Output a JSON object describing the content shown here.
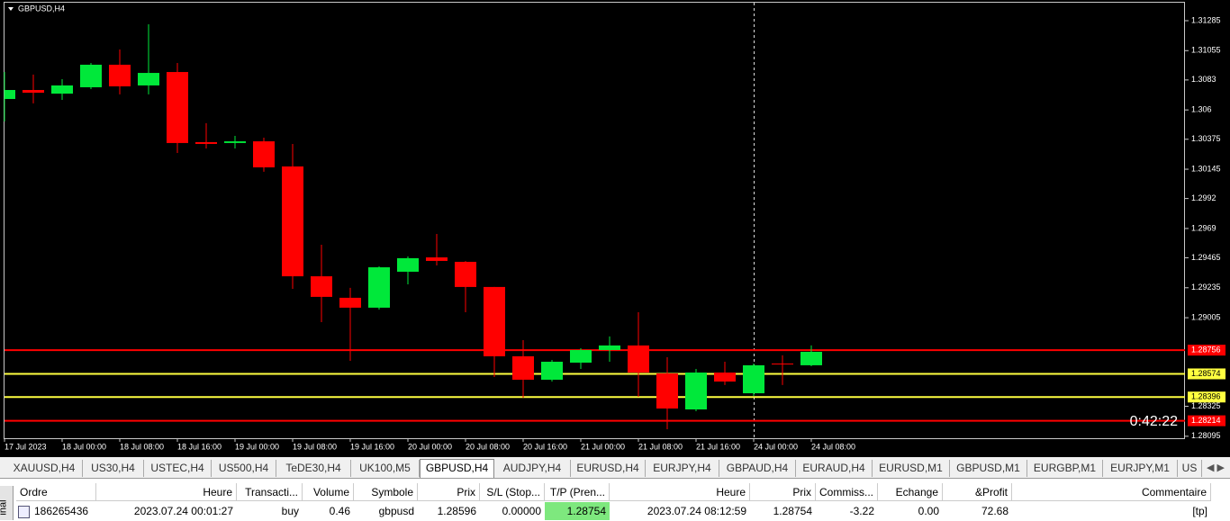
{
  "chart_data": {
    "type": "candlestick",
    "title": "GBPUSD,H4",
    "categories": [
      "17 Jul 2023",
      null,
      "18 Jul 00:00",
      null,
      "18 Jul 08:00",
      null,
      "18 Jul 16:00",
      null,
      "19 Jul 00:00",
      null,
      "19 Jul 08:00",
      null,
      "19 Jul 16:00",
      null,
      "20 Jul 00:00",
      null,
      "20 Jul 08:00",
      null,
      "20 Jul 16:00",
      null,
      "21 Jul 00:00",
      null,
      "21 Jul 08:00",
      null,
      "21 Jul 16:00",
      null,
      "24 Jul 00:00",
      null,
      "24 Jul 08:00"
    ],
    "open": [
      1.30684,
      1.30753,
      1.30725,
      1.30774,
      1.30947,
      1.30788,
      1.30891,
      1.30353,
      1.30346,
      1.30359,
      1.30166,
      1.29323,
      1.29158,
      1.29082,
      1.29358,
      1.29468,
      1.29434,
      1.29241,
      1.28709,
      1.28529,
      1.2866,
      1.28757,
      1.28792,
      1.28577,
      1.28301,
      1.28584,
      1.28425,
      1.28653,
      1.2864
    ],
    "high": [
      1.30891,
      1.30871,
      1.30836,
      1.3096,
      1.31064,
      1.31257,
      1.3096,
      1.30498,
      1.30401,
      1.30387,
      1.30339,
      1.29565,
      1.29234,
      1.29399,
      1.29475,
      1.29648,
      1.2944,
      1.29241,
      1.28833,
      1.28681,
      1.28771,
      1.28861,
      1.29047,
      1.28702,
      1.28612,
      1.28667,
      1.28653,
      1.28716,
      1.28792
    ],
    "low": [
      1.30511,
      1.3065,
      1.30677,
      1.3076,
      1.30719,
      1.30719,
      1.3027,
      1.30304,
      1.30304,
      1.30125,
      1.29227,
      1.28971,
      1.28674,
      1.29068,
      1.29261,
      1.29406,
      1.29047,
      1.2855,
      1.28391,
      1.28515,
      1.28612,
      1.28667,
      1.28398,
      1.28149,
      1.28287,
      1.28488,
      1.28405,
      1.28488,
      1.28633
    ],
    "close": [
      1.30753,
      1.30732,
      1.30788,
      1.30947,
      1.30781,
      1.30884,
      1.30346,
      1.30339,
      1.30359,
      1.30159,
      1.29323,
      1.29165,
      1.29082,
      1.29392,
      1.29462,
      1.29441,
      1.29241,
      1.28709,
      1.28529,
      1.28667,
      1.28757,
      1.28792,
      1.28584,
      1.28308,
      1.28584,
      1.28515,
      1.2864,
      1.28646,
      1.28743
    ],
    "up_color": "#00e83a",
    "down_color": "#ff0000",
    "ylim": [
      1.2808,
      1.3143
    ],
    "yticks": [
      1.31285,
      1.31055,
      1.3083,
      1.306,
      1.30375,
      1.30145,
      1.2992,
      1.2969,
      1.29465,
      1.29235,
      1.29005,
      1.28325,
      1.28095
    ],
    "levels": [
      {
        "value": 1.28756,
        "color": "#ff0000"
      },
      {
        "value": 1.28574,
        "color": "#ffff40"
      },
      {
        "value": 1.28396,
        "color": "#ffff40"
      },
      {
        "value": 1.28214,
        "color": "#ff0000"
      }
    ],
    "countdown": "0:42:22"
  },
  "tabs": [
    "XAUUSD,H4",
    "US30,H4",
    "USTEC,H4",
    "US500,H4",
    "TeDE30,H4",
    "UK100,M5",
    "GBPUSD,H4",
    "AUDJPY,H4",
    "EURUSD,H4",
    "EURJPY,H4",
    "GBPAUD,H4",
    "EURAUD,H4",
    "EURUSD,M1",
    "GBPUSD,M1",
    "EURGBP,M1",
    "EURJPY,M1",
    "US"
  ],
  "terminal_label": "inal",
  "table": {
    "header": [
      "Ordre",
      "Heure",
      "Transacti...",
      "Volume",
      "Symbole",
      "Prix",
      "S/L (Stop...",
      "T/P (Pren...",
      "Heure",
      "Prix",
      "Commiss...",
      "Echange",
      "&Profit",
      "Commentaire"
    ],
    "rows": [
      [
        "186265436",
        "2023.07.24 00:01:27",
        "buy",
        "0.46",
        "gbpusd",
        "1.28596",
        "0.00000",
        "1.28754",
        "2023.07.24 08:12:59",
        "1.28754",
        "-3.22",
        "0.00",
        "72.68",
        "[tp]"
      ]
    ]
  }
}
